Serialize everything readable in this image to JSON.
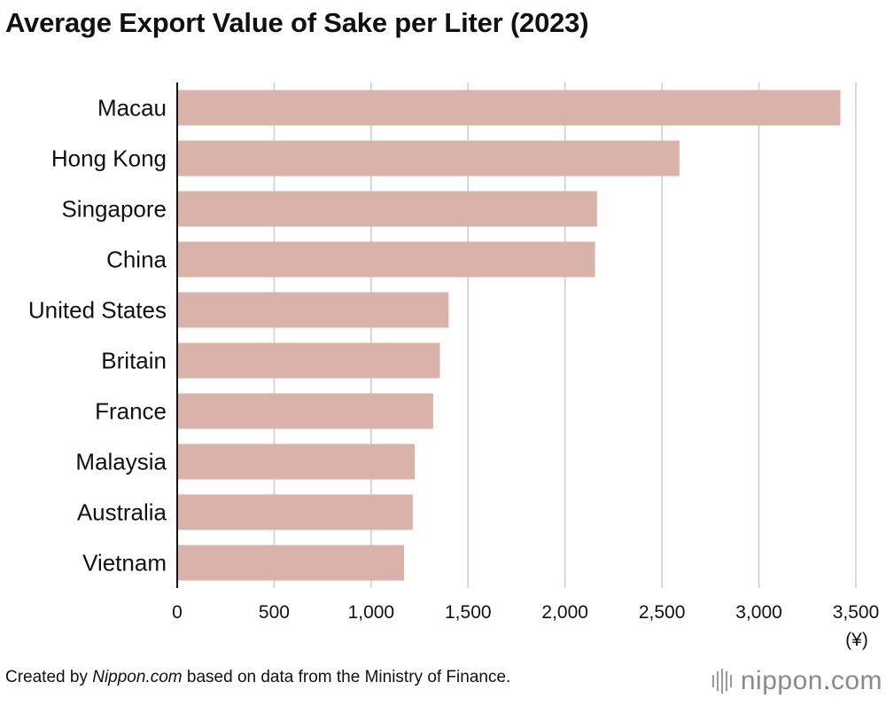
{
  "title": "Average Export Value of Sake per Liter (2023)",
  "footer": {
    "prefix": "Created by ",
    "source_name": "Nippon.com",
    "suffix": " based on data from the Ministry of Finance."
  },
  "logo": {
    "word_before_dot": "nippon",
    "dot": ".",
    "word_after_dot": "com"
  },
  "colors": {
    "bar": "#d9b3a9",
    "grid": "#cccccc",
    "axis": "#111111",
    "logo_dot": "#d23b3b"
  },
  "chart_data": {
    "type": "bar",
    "orientation": "horizontal",
    "categories": [
      "Macau",
      "Hong Kong",
      "Singapore",
      "China",
      "United States",
      "Britain",
      "France",
      "Malaysia",
      "Australia",
      "Vietnam"
    ],
    "values": [
      3420,
      2590,
      2165,
      2155,
      1400,
      1355,
      1320,
      1225,
      1215,
      1170
    ],
    "xlim": [
      0,
      3500
    ],
    "xticks": [
      0,
      500,
      1000,
      1500,
      2000,
      2500,
      3000,
      3500
    ],
    "xtick_labels": [
      "0",
      "500",
      "1,000",
      "1,500",
      "2,000",
      "2,500",
      "3,000",
      "3,500"
    ],
    "unit_label": "(¥)",
    "grid": true
  }
}
